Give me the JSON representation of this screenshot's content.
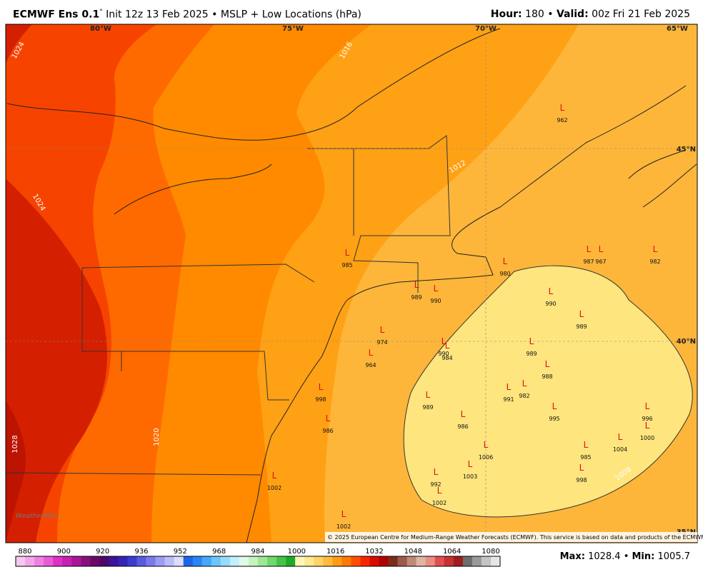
{
  "header": {
    "model": "ECMWF Ens 0.1",
    "degree": "°",
    "title": "Init 12z 13 Feb 2025 • MSLP + Low Locations (hPa)",
    "hour_label": "Hour:",
    "hour": 180,
    "valid_label": "Valid:",
    "valid": "00z Fri 21 Feb 2025"
  },
  "map": {
    "lon_labels": [
      "80°W",
      "75°W",
      "70°W",
      "65°W"
    ],
    "lat_labels": [
      "45°N",
      "40°N",
      "35°N"
    ],
    "contour_labels": [
      "1024",
      "1016",
      "1024",
      "1012",
      "1020",
      "1028",
      "1008"
    ],
    "low_marker": "L",
    "lows": [
      962,
      985,
      989,
      990,
      980,
      987,
      967,
      982,
      990,
      989,
      974,
      964,
      990,
      984,
      989,
      988,
      991,
      982,
      998,
      989,
      986,
      995,
      986,
      996,
      1000,
      1004,
      985,
      1006,
      1003,
      998,
      992,
      1002,
      1002,
      1002
    ],
    "logo": "WeatherBELL",
    "credit": "© 2025 European Centre for Medium-Range Weather Forecasts (ECMWF). This service is based on data and products of the ECMWF."
  },
  "colorbar": {
    "ticks": [
      880,
      900,
      920,
      936,
      952,
      968,
      984,
      1000,
      1016,
      1032,
      1048,
      1064,
      1080
    ],
    "colors": [
      "#f7c8f0",
      "#f4a6ea",
      "#f080e2",
      "#ea5ad8",
      "#e030c8",
      "#c820b0",
      "#a81896",
      "#88107c",
      "#6a0a66",
      "#4c0868",
      "#3a1496",
      "#3424b4",
      "#3c3cd0",
      "#5a5ae0",
      "#7a7aec",
      "#9c9cf4",
      "#bcbcf8",
      "#dcdcfc",
      "#1e64e6",
      "#2a86f4",
      "#44a8fa",
      "#6cc6fc",
      "#98dcfc",
      "#c4eefc",
      "#e0fae8",
      "#c4f4c0",
      "#9ce896",
      "#70d86c",
      "#44c444",
      "#1eaa28",
      "#fff8b4",
      "#ffe890",
      "#ffd466",
      "#ffbc3c",
      "#ff9c14",
      "#ff7a00",
      "#ff5000",
      "#f42800",
      "#d80c00",
      "#b00000",
      "#7c2c1c",
      "#9c5a48",
      "#c08a78",
      "#e0b4a4",
      "#ec8c84",
      "#e05050",
      "#c83030",
      "#a01c1c",
      "#6e6e6e",
      "#9a9a9a",
      "#c4c4c4",
      "#e6e6e6"
    ]
  },
  "footer": {
    "max_label": "Max:",
    "max": 1028.4,
    "min_label": "Min:",
    "min": 1005.7
  }
}
